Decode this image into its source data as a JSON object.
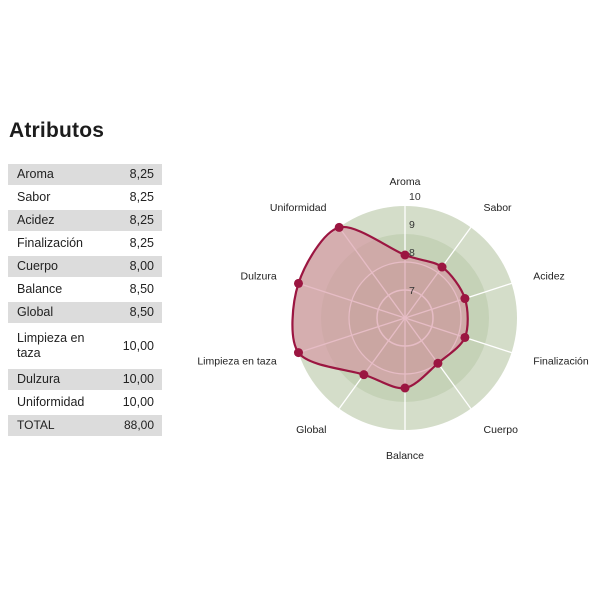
{
  "title": "Atributos",
  "table": {
    "rows": [
      {
        "label": "Aroma",
        "value": "8,25"
      },
      {
        "label": "Sabor",
        "value": "8,25"
      },
      {
        "label": "Acidez",
        "value": "8,25"
      },
      {
        "label": "Finalización",
        "value": "8,25"
      },
      {
        "label": "Cuerpo",
        "value": "8,00"
      },
      {
        "label": "Balance",
        "value": "8,50"
      },
      {
        "label": "Global",
        "value": "8,50"
      },
      {
        "label": "Limpieza en taza",
        "value": "10,00"
      },
      {
        "label": "Dulzura",
        "value": "10,00"
      },
      {
        "label": "Uniformidad",
        "value": "10,00"
      }
    ],
    "total": {
      "label": "TOTAL",
      "value": "88,00"
    }
  },
  "chart_data": {
    "type": "radar",
    "axes": [
      "Aroma",
      "Sabor",
      "Acidez",
      "Finalización",
      "Cuerpo",
      "Balance",
      "Global",
      "Limpieza en taza",
      "Dulzura",
      "Uniformidad"
    ],
    "values": [
      8.25,
      8.25,
      8.25,
      8.25,
      8.0,
      8.5,
      8.5,
      10.0,
      10.0,
      10.0
    ],
    "range": [
      6,
      10
    ],
    "tick_labels": [
      "7",
      "8",
      "9",
      "10"
    ],
    "colors": {
      "outer_ring": "#d4ddc9",
      "middle_ring": "#c5d2b7",
      "inner_disc": "#b9c8a8",
      "spokes": "#ffffff",
      "series_line": "#9b1641",
      "series_fill": "#d58f9e",
      "points": "#9b1641"
    }
  }
}
